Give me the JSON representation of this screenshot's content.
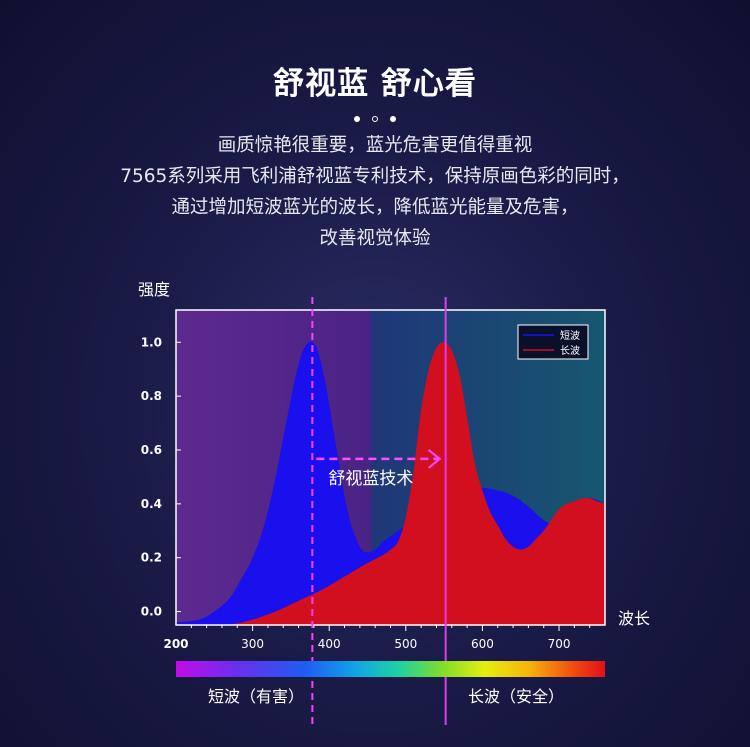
{
  "header": {
    "title": "舒视蓝 舒心看",
    "description_lines": [
      "画质惊艳很重要，蓝光危害更值得重视",
      "7565系列采用飞利浦舒视蓝专利技术，保持原画色彩的同时，",
      "通过增加短波蓝光的波长，降低蓝光能量及危害，",
      "改善视觉体验"
    ]
  },
  "chart_data": {
    "type": "area",
    "ylabel": "强度",
    "xlabel": "波长",
    "xlim": [
      200,
      760
    ],
    "ylim": [
      -0.05,
      1.12
    ],
    "x_ticks": [
      200,
      300,
      400,
      500,
      600,
      700
    ],
    "y_ticks": [
      0.0,
      0.2,
      0.4,
      0.6,
      0.8,
      1.0
    ],
    "y_tick_labels": [
      "0.0",
      "0.2",
      "0.4",
      "0.6",
      "0.8",
      "1.0"
    ],
    "series": [
      {
        "name": "短波",
        "color": "#1a10ee",
        "x": [
          200,
          230,
          250,
          270,
          285,
          300,
          315,
          330,
          345,
          360,
          370,
          378,
          385,
          395,
          410,
          425,
          440,
          450,
          460,
          470,
          480,
          500,
          520,
          540,
          560,
          580,
          600,
          620,
          640,
          660,
          680,
          700,
          720,
          740,
          760
        ],
        "y": [
          -0.04,
          -0.03,
          0.0,
          0.05,
          0.12,
          0.2,
          0.32,
          0.5,
          0.72,
          0.92,
          0.99,
          1.0,
          0.97,
          0.85,
          0.6,
          0.36,
          0.24,
          0.22,
          0.23,
          0.26,
          0.28,
          0.32,
          0.37,
          0.42,
          0.45,
          0.46,
          0.46,
          0.45,
          0.43,
          0.39,
          0.34,
          0.32,
          0.38,
          0.42,
          0.4
        ]
      },
      {
        "name": "长波",
        "color": "#d20f1e",
        "x": [
          270,
          300,
          330,
          360,
          390,
          420,
          450,
          470,
          480,
          490,
          500,
          510,
          520,
          530,
          540,
          550,
          560,
          570,
          580,
          590,
          600,
          610,
          620,
          630,
          640,
          650,
          660,
          670,
          680,
          690,
          700,
          710,
          720,
          730,
          740,
          750,
          760
        ],
        "y": [
          -0.05,
          -0.03,
          0.0,
          0.04,
          0.08,
          0.13,
          0.18,
          0.21,
          0.23,
          0.26,
          0.35,
          0.52,
          0.75,
          0.9,
          0.98,
          1.0,
          0.97,
          0.88,
          0.72,
          0.55,
          0.45,
          0.37,
          0.32,
          0.27,
          0.24,
          0.23,
          0.24,
          0.27,
          0.3,
          0.34,
          0.38,
          0.4,
          0.41,
          0.42,
          0.42,
          0.41,
          0.4
        ]
      }
    ],
    "legend": {
      "placement": "top-right",
      "entries": [
        "短波",
        "长波"
      ]
    },
    "markers": [
      {
        "x": 378,
        "color": "#ff3dff",
        "style": "dashed"
      },
      {
        "x": 552,
        "color": "#e23bea",
        "style": "solid"
      }
    ],
    "annotation": {
      "text": "舒视蓝技术",
      "arrow_from_x": 378,
      "arrow_to_x": 552,
      "arrow_y": 0.5
    },
    "spectrum_labels": {
      "short": "短波（有害）",
      "long": "长波（安全）"
    },
    "grid": false
  }
}
